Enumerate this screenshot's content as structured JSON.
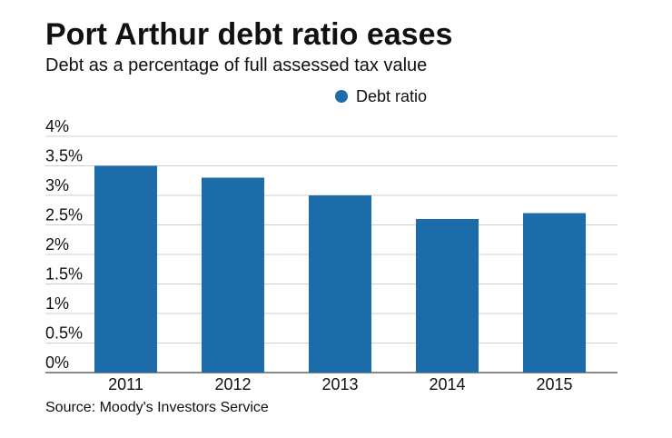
{
  "header": {
    "title": "Port Arthur debt ratio eases",
    "subtitle": "Debt as a percentage of full assessed tax value"
  },
  "footer": {
    "source": "Source: Moody's Investors Service"
  },
  "chart_data": {
    "type": "bar",
    "title": "Port Arthur debt ratio eases",
    "subtitle": "Debt as a percentage of full assessed tax value",
    "categories": [
      "2011",
      "2012",
      "2013",
      "2014",
      "2015"
    ],
    "series": [
      {
        "name": "Debt ratio",
        "values": [
          3.5,
          3.3,
          3.0,
          2.6,
          2.7
        ],
        "color": "#1b6ca8"
      }
    ],
    "ylim": [
      0,
      4
    ],
    "yticks": [
      0,
      0.5,
      1,
      1.5,
      2,
      2.5,
      3,
      3.5,
      4
    ],
    "ytick_labels": [
      "0%",
      "0.5%",
      "1%",
      "1.5%",
      "2%",
      "2.5%",
      "3%",
      "3.5%",
      "4%"
    ],
    "xlabel": "",
    "ylabel": "",
    "grid": true,
    "legend": "top-center"
  }
}
